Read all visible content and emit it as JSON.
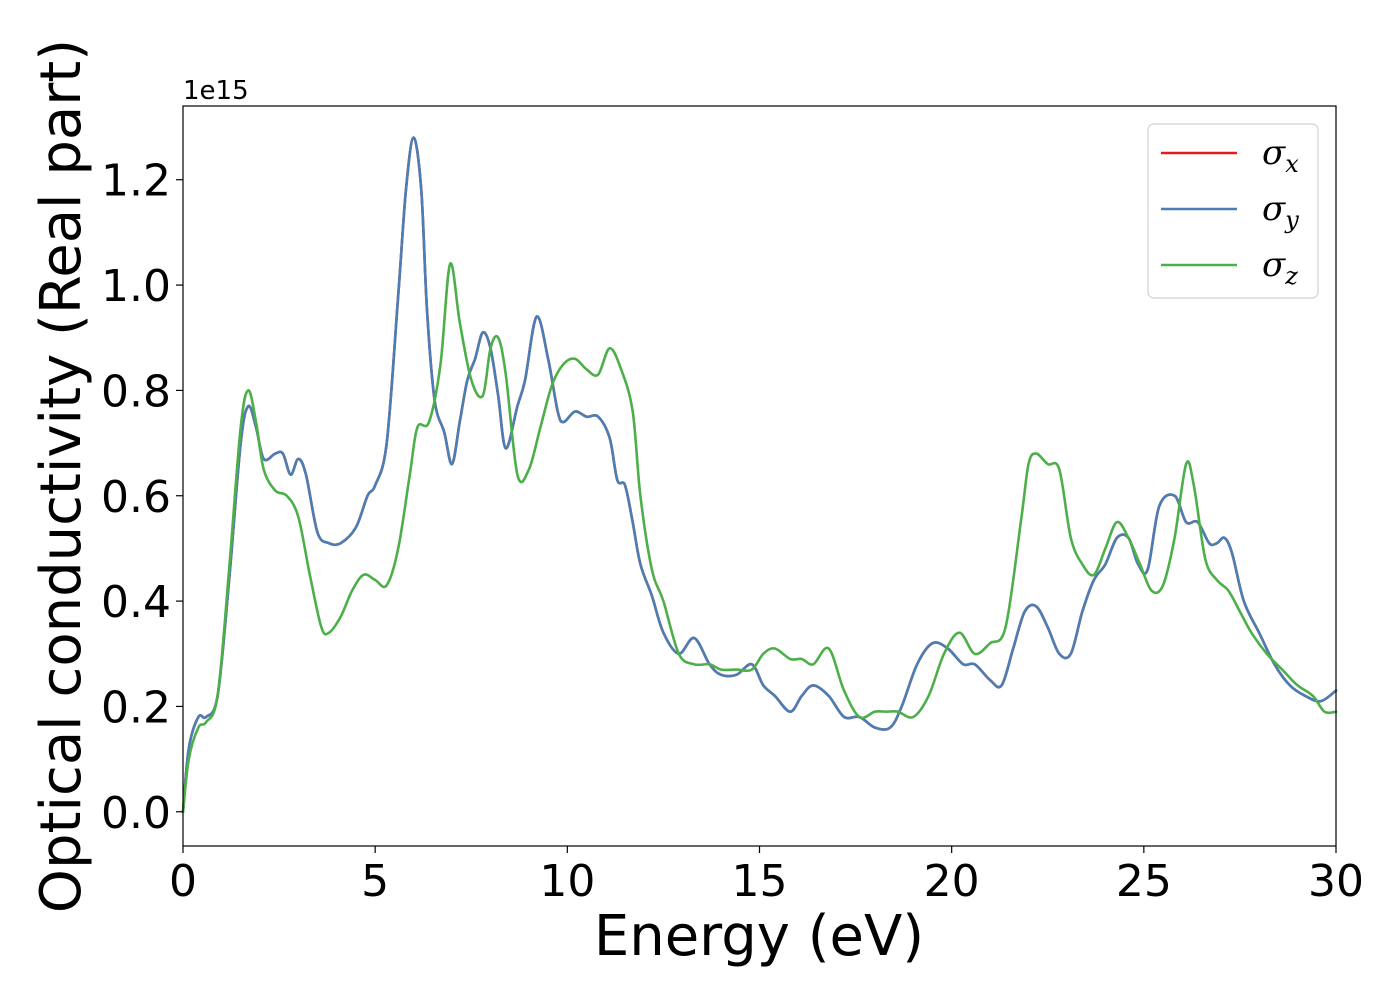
{
  "chart_data": {
    "type": "line",
    "xlabel": "Energy (eV)",
    "ylabel": "Optical conductivity (Real part)",
    "y_offset_label": "1e15",
    "xlim": [
      0,
      30
    ],
    "ylim": [
      -0.065,
      1.34
    ],
    "x_ticks": [
      0,
      5,
      10,
      15,
      20,
      25,
      30
    ],
    "x_tick_labels": [
      "0",
      "5",
      "10",
      "15",
      "20",
      "25",
      "30"
    ],
    "y_ticks": [
      0.0,
      0.2,
      0.4,
      0.6,
      0.8,
      1.0,
      1.2
    ],
    "y_tick_labels": [
      "0.0",
      "0.2",
      "0.4",
      "0.6",
      "0.8",
      "1.0",
      "1.2"
    ],
    "grid": false,
    "legend_position": "top-right",
    "series": [
      {
        "name": "σx",
        "legend_base": "σ",
        "legend_sub": "x",
        "color": "#e41a1c",
        "x": [
          0,
          0.15,
          0.4,
          0.6,
          0.9,
          1.2,
          1.5,
          1.7,
          1.9,
          2.1,
          2.4,
          2.6,
          2.8,
          3.0,
          3.2,
          3.5,
          3.8,
          4.1,
          4.5,
          4.8,
          5.0,
          5.3,
          5.6,
          5.8,
          6.0,
          6.2,
          6.35,
          6.55,
          6.8,
          7.0,
          7.2,
          7.4,
          7.6,
          7.8,
          8.0,
          8.2,
          8.4,
          8.7,
          8.9,
          9.2,
          9.5,
          9.75,
          9.9,
          10.2,
          10.5,
          10.8,
          11.1,
          11.3,
          11.5,
          11.7,
          11.9,
          12.2,
          12.5,
          12.9,
          13.3,
          13.7,
          14.0,
          14.4,
          14.8,
          15.1,
          15.4,
          15.8,
          16.1,
          16.4,
          16.8,
          17.2,
          17.6,
          18.0,
          18.4,
          18.7,
          19.1,
          19.5,
          19.9,
          20.3,
          20.6,
          21.0,
          21.3,
          21.6,
          21.9,
          22.2,
          22.5,
          22.8,
          23.1,
          23.4,
          23.7,
          24.0,
          24.3,
          24.6,
          24.85,
          25.1,
          25.4,
          25.8,
          26.1,
          26.4,
          26.7,
          26.9,
          27.1,
          27.3,
          27.6,
          28.0,
          28.4,
          28.8,
          29.2,
          29.6,
          30.0
        ],
        "values": [
          0.0,
          0.12,
          0.18,
          0.18,
          0.22,
          0.44,
          0.7,
          0.77,
          0.73,
          0.67,
          0.68,
          0.68,
          0.64,
          0.67,
          0.64,
          0.53,
          0.51,
          0.51,
          0.54,
          0.6,
          0.62,
          0.7,
          0.98,
          1.18,
          1.28,
          1.18,
          0.95,
          0.78,
          0.72,
          0.66,
          0.74,
          0.82,
          0.86,
          0.91,
          0.88,
          0.79,
          0.69,
          0.77,
          0.82,
          0.94,
          0.86,
          0.76,
          0.74,
          0.76,
          0.75,
          0.75,
          0.71,
          0.63,
          0.62,
          0.55,
          0.47,
          0.41,
          0.34,
          0.3,
          0.33,
          0.28,
          0.26,
          0.26,
          0.28,
          0.24,
          0.22,
          0.19,
          0.22,
          0.24,
          0.22,
          0.18,
          0.18,
          0.16,
          0.16,
          0.2,
          0.28,
          0.32,
          0.31,
          0.28,
          0.28,
          0.25,
          0.24,
          0.31,
          0.38,
          0.39,
          0.35,
          0.3,
          0.3,
          0.38,
          0.44,
          0.47,
          0.52,
          0.52,
          0.47,
          0.46,
          0.58,
          0.6,
          0.55,
          0.55,
          0.51,
          0.51,
          0.52,
          0.49,
          0.4,
          0.34,
          0.28,
          0.24,
          0.22,
          0.21,
          0.23
        ]
      },
      {
        "name": "σy",
        "legend_base": "σ",
        "legend_sub": "y",
        "color": "#4a7fb5",
        "x": [
          0,
          0.15,
          0.4,
          0.6,
          0.9,
          1.2,
          1.5,
          1.7,
          1.9,
          2.1,
          2.4,
          2.6,
          2.8,
          3.0,
          3.2,
          3.5,
          3.8,
          4.1,
          4.5,
          4.8,
          5.0,
          5.3,
          5.6,
          5.8,
          6.0,
          6.2,
          6.35,
          6.55,
          6.8,
          7.0,
          7.2,
          7.4,
          7.6,
          7.8,
          8.0,
          8.2,
          8.4,
          8.7,
          8.9,
          9.2,
          9.5,
          9.75,
          9.9,
          10.2,
          10.5,
          10.8,
          11.1,
          11.3,
          11.5,
          11.7,
          11.9,
          12.2,
          12.5,
          12.9,
          13.3,
          13.7,
          14.0,
          14.4,
          14.8,
          15.1,
          15.4,
          15.8,
          16.1,
          16.4,
          16.8,
          17.2,
          17.6,
          18.0,
          18.4,
          18.7,
          19.1,
          19.5,
          19.9,
          20.3,
          20.6,
          21.0,
          21.3,
          21.6,
          21.9,
          22.2,
          22.5,
          22.8,
          23.1,
          23.4,
          23.7,
          24.0,
          24.3,
          24.6,
          24.85,
          25.1,
          25.4,
          25.8,
          26.1,
          26.4,
          26.7,
          26.9,
          27.1,
          27.3,
          27.6,
          28.0,
          28.4,
          28.8,
          29.2,
          29.6,
          30.0
        ],
        "values": [
          0.0,
          0.12,
          0.18,
          0.18,
          0.22,
          0.44,
          0.7,
          0.77,
          0.73,
          0.67,
          0.68,
          0.68,
          0.64,
          0.67,
          0.64,
          0.53,
          0.51,
          0.51,
          0.54,
          0.6,
          0.62,
          0.7,
          0.98,
          1.18,
          1.28,
          1.18,
          0.95,
          0.78,
          0.72,
          0.66,
          0.74,
          0.82,
          0.86,
          0.91,
          0.88,
          0.79,
          0.69,
          0.77,
          0.82,
          0.94,
          0.86,
          0.76,
          0.74,
          0.76,
          0.75,
          0.75,
          0.71,
          0.63,
          0.62,
          0.55,
          0.47,
          0.41,
          0.34,
          0.3,
          0.33,
          0.28,
          0.26,
          0.26,
          0.28,
          0.24,
          0.22,
          0.19,
          0.22,
          0.24,
          0.22,
          0.18,
          0.18,
          0.16,
          0.16,
          0.2,
          0.28,
          0.32,
          0.31,
          0.28,
          0.28,
          0.25,
          0.24,
          0.31,
          0.38,
          0.39,
          0.35,
          0.3,
          0.3,
          0.38,
          0.44,
          0.47,
          0.52,
          0.52,
          0.47,
          0.46,
          0.58,
          0.6,
          0.55,
          0.55,
          0.51,
          0.51,
          0.52,
          0.49,
          0.4,
          0.34,
          0.28,
          0.24,
          0.22,
          0.21,
          0.23
        ]
      },
      {
        "name": "σz",
        "legend_base": "σ",
        "legend_sub": "z",
        "color": "#4daf4a",
        "x": [
          0,
          0.15,
          0.4,
          0.6,
          0.9,
          1.2,
          1.5,
          1.7,
          1.9,
          2.1,
          2.4,
          2.7,
          3.0,
          3.3,
          3.6,
          3.8,
          4.1,
          4.4,
          4.7,
          5.0,
          5.3,
          5.6,
          5.9,
          6.1,
          6.4,
          6.7,
          6.95,
          7.2,
          7.5,
          7.8,
          8.0,
          8.2,
          8.4,
          8.7,
          9.0,
          9.3,
          9.6,
          9.9,
          10.2,
          10.5,
          10.8,
          11.1,
          11.4,
          11.7,
          11.9,
          12.2,
          12.5,
          12.9,
          13.3,
          13.7,
          14.0,
          14.4,
          14.8,
          15.1,
          15.4,
          15.8,
          16.1,
          16.4,
          16.8,
          17.2,
          17.6,
          18.0,
          18.3,
          18.6,
          19.0,
          19.4,
          19.8,
          20.2,
          20.6,
          21.0,
          21.4,
          21.8,
          22.0,
          22.2,
          22.5,
          22.8,
          23.1,
          23.4,
          23.7,
          24.0,
          24.3,
          24.6,
          24.9,
          25.2,
          25.5,
          25.8,
          26.1,
          26.3,
          26.6,
          26.9,
          27.2,
          27.5,
          27.8,
          28.2,
          28.6,
          29.0,
          29.4,
          29.7,
          30.0
        ],
        "values": [
          0.0,
          0.1,
          0.16,
          0.17,
          0.22,
          0.46,
          0.73,
          0.8,
          0.74,
          0.65,
          0.61,
          0.6,
          0.56,
          0.45,
          0.35,
          0.34,
          0.37,
          0.42,
          0.45,
          0.44,
          0.43,
          0.5,
          0.64,
          0.73,
          0.74,
          0.85,
          1.04,
          0.93,
          0.82,
          0.79,
          0.88,
          0.9,
          0.83,
          0.64,
          0.65,
          0.73,
          0.81,
          0.85,
          0.86,
          0.84,
          0.83,
          0.88,
          0.84,
          0.76,
          0.6,
          0.46,
          0.4,
          0.3,
          0.28,
          0.28,
          0.27,
          0.27,
          0.27,
          0.3,
          0.31,
          0.29,
          0.29,
          0.28,
          0.31,
          0.23,
          0.18,
          0.19,
          0.19,
          0.19,
          0.18,
          0.22,
          0.3,
          0.34,
          0.3,
          0.32,
          0.35,
          0.55,
          0.66,
          0.68,
          0.66,
          0.65,
          0.52,
          0.47,
          0.45,
          0.5,
          0.55,
          0.52,
          0.47,
          0.42,
          0.43,
          0.52,
          0.66,
          0.62,
          0.48,
          0.44,
          0.42,
          0.38,
          0.34,
          0.3,
          0.27,
          0.24,
          0.22,
          0.19,
          0.19
        ]
      }
    ]
  }
}
